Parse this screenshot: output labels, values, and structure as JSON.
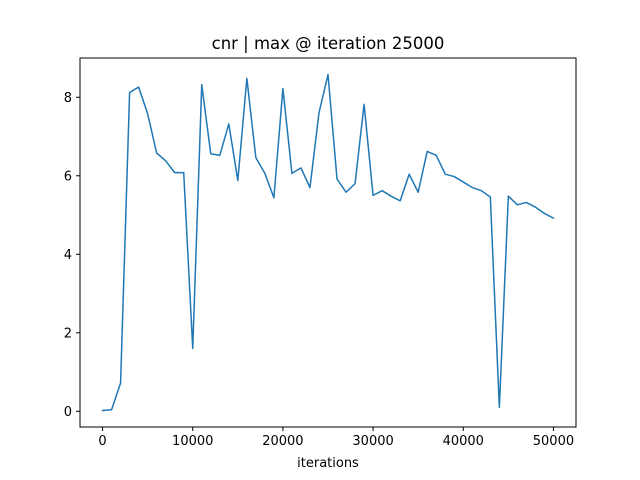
{
  "chart_data": {
    "type": "line",
    "title": "cnr | max @ iteration 25000",
    "xlabel": "iterations",
    "ylabel": "",
    "xlim": [
      -2500,
      52500
    ],
    "ylim": [
      -0.4,
      9.0
    ],
    "xticks": [
      0,
      10000,
      20000,
      30000,
      40000,
      50000
    ],
    "yticks": [
      0,
      2,
      4,
      6,
      8
    ],
    "grid": false,
    "series": [
      {
        "color": "#1f77b4",
        "x": [
          0,
          1000,
          2000,
          3000,
          4000,
          5000,
          6000,
          7000,
          8000,
          9000,
          10000,
          11000,
          12000,
          13000,
          14000,
          15000,
          16000,
          17000,
          18000,
          19000,
          20000,
          21000,
          22000,
          23000,
          24000,
          25000,
          26000,
          27000,
          28000,
          29000,
          30000,
          31000,
          32000,
          33000,
          34000,
          35000,
          36000,
          37000,
          38000,
          39000,
          40000,
          41000,
          42000,
          43000,
          44000,
          45000,
          46000,
          47000,
          48000,
          49000,
          50000
        ],
        "y": [
          0.02,
          0.04,
          0.72,
          8.12,
          8.26,
          7.58,
          6.58,
          6.38,
          6.08,
          6.08,
          1.6,
          8.32,
          6.56,
          6.52,
          7.32,
          5.88,
          8.48,
          6.46,
          6.06,
          5.44,
          8.22,
          6.06,
          6.2,
          5.7,
          7.6,
          8.58,
          5.92,
          5.58,
          5.8,
          7.82,
          5.5,
          5.62,
          5.48,
          5.36,
          6.04,
          5.58,
          6.62,
          6.52,
          6.04,
          5.98,
          5.84,
          5.7,
          5.62,
          5.46,
          0.1,
          5.48,
          5.26,
          5.32,
          5.2,
          5.04,
          4.92
        ]
      }
    ]
  }
}
